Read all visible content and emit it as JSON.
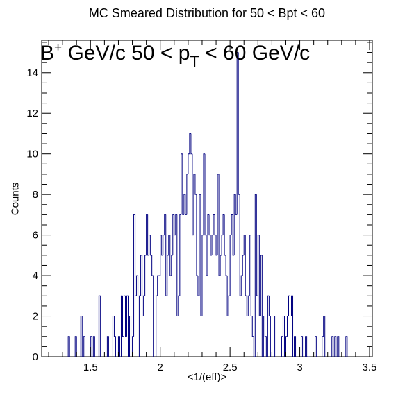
{
  "chart_data": {
    "type": "histogram",
    "title": "MC Smeared Distribution for 50 < Bpt < 60",
    "xlabel": "<1/(eff)>",
    "ylabel": "Counts",
    "annotation": {
      "particle": "B",
      "charge": "+",
      "text_a": " GeV/c 50 < p",
      "subscript": "T",
      "text_b": " < 60 GeV/c"
    },
    "xlim": [
      1.15,
      3.52
    ],
    "ylim": [
      0,
      15.6
    ],
    "x_ticks": [
      1.5,
      2,
      2.5,
      3,
      3.5
    ],
    "x_tick_labels": [
      "1.5",
      "2",
      "2.5",
      "3",
      "3.5"
    ],
    "y_ticks": [
      0,
      2,
      4,
      6,
      8,
      10,
      12,
      14
    ],
    "y_tick_labels": [
      "0",
      "2",
      "4",
      "6",
      "8",
      "10",
      "12",
      "14"
    ],
    "grid": false,
    "line_color": "#000080",
    "bin_width": 0.01,
    "bins": [
      [
        1.34,
        1
      ],
      [
        1.39,
        1
      ],
      [
        1.43,
        2
      ],
      [
        1.45,
        1
      ],
      [
        1.5,
        1
      ],
      [
        1.52,
        1
      ],
      [
        1.56,
        3
      ],
      [
        1.62,
        1
      ],
      [
        1.66,
        2
      ],
      [
        1.67,
        1
      ],
      [
        1.7,
        1
      ],
      [
        1.72,
        3
      ],
      [
        1.73,
        1
      ],
      [
        1.74,
        3
      ],
      [
        1.75,
        1
      ],
      [
        1.76,
        3
      ],
      [
        1.78,
        2
      ],
      [
        1.8,
        1
      ],
      [
        1.81,
        7
      ],
      [
        1.82,
        3
      ],
      [
        1.83,
        4
      ],
      [
        1.85,
        3
      ],
      [
        1.86,
        5
      ],
      [
        1.87,
        2
      ],
      [
        1.88,
        3
      ],
      [
        1.89,
        5
      ],
      [
        1.9,
        7
      ],
      [
        1.91,
        5
      ],
      [
        1.92,
        6
      ],
      [
        1.93,
        5
      ],
      [
        1.94,
        4
      ],
      [
        1.97,
        3
      ],
      [
        1.98,
        4
      ],
      [
        1.99,
        4
      ],
      [
        2.0,
        6
      ],
      [
        2.01,
        5
      ],
      [
        2.02,
        6
      ],
      [
        2.03,
        7
      ],
      [
        2.04,
        3
      ],
      [
        2.05,
        5
      ],
      [
        2.06,
        6
      ],
      [
        2.07,
        4
      ],
      [
        2.08,
        5
      ],
      [
        2.09,
        7
      ],
      [
        2.1,
        6
      ],
      [
        2.11,
        7
      ],
      [
        2.12,
        2
      ],
      [
        2.13,
        3
      ],
      [
        2.14,
        7
      ],
      [
        2.15,
        10
      ],
      [
        2.16,
        7
      ],
      [
        2.17,
        8
      ],
      [
        2.18,
        7
      ],
      [
        2.19,
        9
      ],
      [
        2.2,
        10
      ],
      [
        2.21,
        11
      ],
      [
        2.22,
        10
      ],
      [
        2.23,
        6
      ],
      [
        2.24,
        9
      ],
      [
        2.25,
        8
      ],
      [
        2.26,
        4
      ],
      [
        2.27,
        3
      ],
      [
        2.28,
        8
      ],
      [
        2.29,
        2
      ],
      [
        2.3,
        6
      ],
      [
        2.31,
        10
      ],
      [
        2.32,
        6
      ],
      [
        2.33,
        4
      ],
      [
        2.34,
        7
      ],
      [
        2.35,
        6
      ],
      [
        2.36,
        5
      ],
      [
        2.37,
        6
      ],
      [
        2.38,
        7
      ],
      [
        2.39,
        6
      ],
      [
        2.4,
        5
      ],
      [
        2.41,
        9
      ],
      [
        2.42,
        4
      ],
      [
        2.43,
        5
      ],
      [
        2.44,
        6
      ],
      [
        2.45,
        7
      ],
      [
        2.46,
        5
      ],
      [
        2.47,
        4
      ],
      [
        2.48,
        2
      ],
      [
        2.49,
        3
      ],
      [
        2.5,
        6
      ],
      [
        2.51,
        7
      ],
      [
        2.52,
        5
      ],
      [
        2.53,
        8
      ],
      [
        2.54,
        7
      ],
      [
        2.55,
        15
      ],
      [
        2.56,
        8
      ],
      [
        2.57,
        3
      ],
      [
        2.58,
        4
      ],
      [
        2.59,
        5
      ],
      [
        2.6,
        6
      ],
      [
        2.61,
        3
      ],
      [
        2.62,
        2
      ],
      [
        2.63,
        3
      ],
      [
        2.64,
        6
      ],
      [
        2.65,
        2
      ],
      [
        2.66,
        1
      ],
      [
        2.67,
        0
      ],
      [
        2.68,
        8
      ],
      [
        2.69,
        3
      ],
      [
        2.7,
        6
      ],
      [
        2.71,
        2
      ],
      [
        2.72,
        5
      ],
      [
        2.74,
        2
      ],
      [
        2.75,
        1
      ],
      [
        2.77,
        3
      ],
      [
        2.78,
        2
      ],
      [
        2.82,
        2
      ],
      [
        2.87,
        1
      ],
      [
        2.88,
        2
      ],
      [
        2.89,
        0
      ],
      [
        2.9,
        1
      ],
      [
        2.91,
        2
      ],
      [
        2.92,
        3
      ],
      [
        2.93,
        2
      ],
      [
        2.94,
        3
      ],
      [
        2.96,
        1
      ],
      [
        3.01,
        1
      ],
      [
        3.04,
        1
      ],
      [
        3.06,
        0
      ],
      [
        3.11,
        1
      ],
      [
        3.16,
        1
      ],
      [
        3.17,
        2
      ],
      [
        3.23,
        1
      ],
      [
        3.25,
        1
      ],
      [
        3.27,
        1
      ],
      [
        3.33,
        1
      ]
    ]
  }
}
